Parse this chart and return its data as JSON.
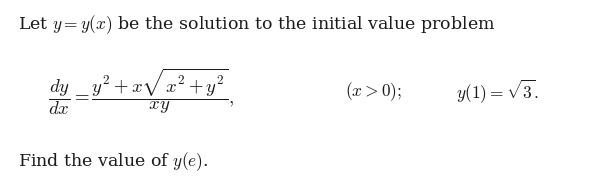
{
  "background_color": "#ffffff",
  "text_color": "#1a1a1a",
  "line1": "Let $y = y(x)$ be the solution to the initial value problem",
  "equation": "$\\dfrac{dy}{dx} = \\dfrac{y^2 + x\\sqrt{x^2 + y^2}}{xy},$",
  "condition": "$(x > 0);$",
  "initial_cond": "$y(1) = \\sqrt{3}.$",
  "line3": "Find the value of $y(e)$.",
  "figsize": [
    6.0,
    1.9
  ],
  "dpi": 100,
  "fontsize_main": 12.5,
  "fontsize_eq": 13.5
}
